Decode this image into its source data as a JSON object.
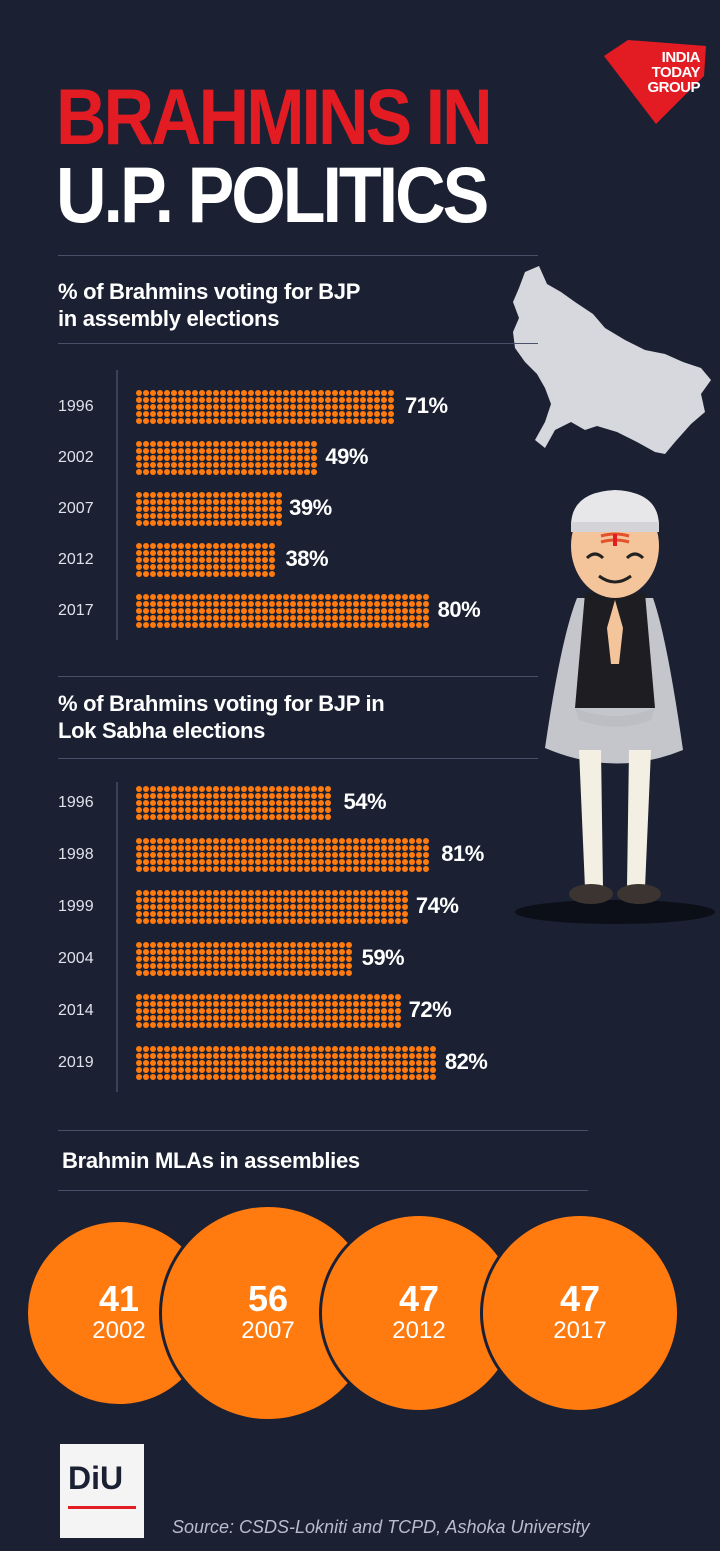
{
  "publisher": {
    "logo_lines": [
      "INDIA",
      "TODAY",
      "GROUP"
    ],
    "brand_color": "#e31b23"
  },
  "title": {
    "line1": "BRAHMINS IN",
    "line2": "U.P. POLITICS"
  },
  "colors": {
    "background": "#1b2133",
    "dots": "#ff7a0f",
    "title_red": "#e31b23"
  },
  "chart_data": [
    {
      "type": "bar",
      "title": "% of  Brahmins voting for BJP in assembly elections",
      "title_lines": [
        "% of  Brahmins voting for BJP",
        "in assembly elections"
      ],
      "categories": [
        "1996",
        "2002",
        "2007",
        "2012",
        "2017"
      ],
      "values": [
        71,
        49,
        39,
        38,
        80
      ],
      "labels": [
        "71%",
        "49%",
        "39%",
        "38%",
        "80%"
      ],
      "unit": "%"
    },
    {
      "type": "bar",
      "title": "% of  Brahmins voting for BJP in Lok Sabha elections",
      "title_lines": [
        "% of  Brahmins voting for BJP in",
        "Lok Sabha elections"
      ],
      "categories": [
        "1996",
        "1998",
        "1999",
        "2004",
        "2014",
        "2019"
      ],
      "values": [
        54,
        81,
        74,
        59,
        72,
        82
      ],
      "labels": [
        "54%",
        "81%",
        "74%",
        "59%",
        "72%",
        "82%"
      ],
      "unit": "%"
    },
    {
      "type": "bubble",
      "title": "Brahmin MLAs in assemblies",
      "categories": [
        "2002",
        "2007",
        "2012",
        "2017"
      ],
      "values": [
        41,
        56,
        47,
        47
      ]
    }
  ],
  "footer": {
    "badge": "DiU",
    "source": "Source: CSDS-Lokniti and TCPD, Ashoka University"
  }
}
